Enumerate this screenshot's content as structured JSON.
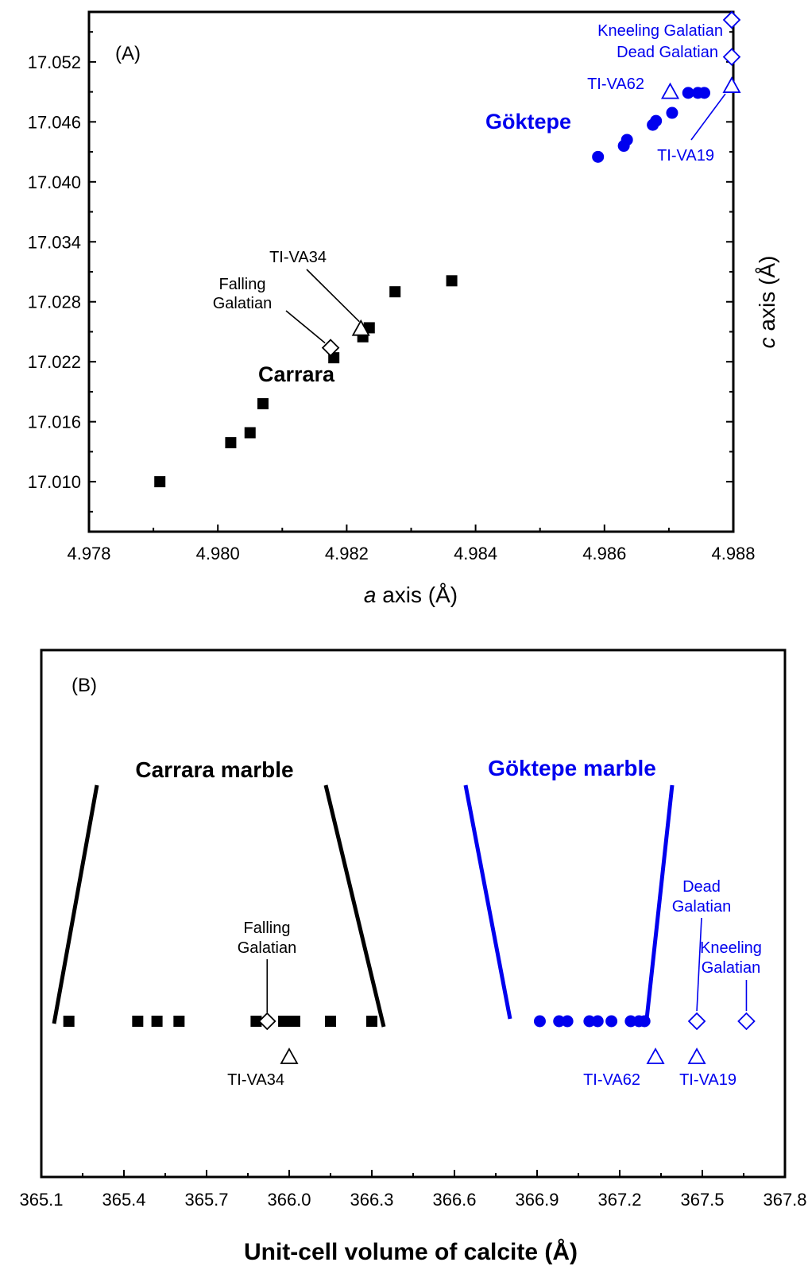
{
  "colors": {
    "carrara": "#000000",
    "goktepe": "#0000ee"
  },
  "chart_data": [
    {
      "type": "scatter",
      "panel_label": "(A)",
      "xlabel_italic": "a",
      "xlabel_rest": " axis (Å)",
      "ylabel_italic": "c",
      "ylabel_rest": " axis (Å)",
      "xlim": [
        4.978,
        4.988
      ],
      "ylim": [
        17.005,
        17.057
      ],
      "x_ticks": [
        4.978,
        4.98,
        4.982,
        4.984,
        4.986,
        4.988
      ],
      "x_tick_labels": [
        "4.978",
        "4.980",
        "4.982",
        "4.984",
        "4.986",
        "4.988"
      ],
      "y_ticks": [
        17.01,
        17.016,
        17.022,
        17.028,
        17.034,
        17.04,
        17.046,
        17.052
      ],
      "y_tick_labels": [
        "17.010",
        "17.016",
        "17.022",
        "17.028",
        "17.034",
        "17.040",
        "17.046",
        "17.052"
      ],
      "y_axis_side": "right",
      "series": [
        {
          "name": "Carrara",
          "marker": "square",
          "color": "#000000",
          "points": [
            [
              4.9791,
              17.01
            ],
            [
              4.9802,
              17.0139
            ],
            [
              4.9805,
              17.0149
            ],
            [
              4.9807,
              17.0178
            ],
            [
              4.9818,
              17.0224
            ],
            [
              4.98225,
              17.0245
            ],
            [
              4.98235,
              17.0254
            ],
            [
              4.98275,
              17.029
            ],
            [
              4.98363,
              17.0301
            ]
          ]
        },
        {
          "name": "Göktepe",
          "marker": "circle",
          "color": "#0000ee",
          "points": [
            [
              4.9859,
              17.0425
            ],
            [
              4.9863,
              17.0436
            ],
            [
              4.98635,
              17.0442
            ],
            [
              4.98675,
              17.0457
            ],
            [
              4.9868,
              17.0461
            ],
            [
              4.98705,
              17.0469
            ],
            [
              4.9873,
              17.0489
            ],
            [
              4.98745,
              17.0489
            ],
            [
              4.98755,
              17.0489
            ]
          ]
        }
      ],
      "samples": [
        {
          "label": "Falling Galatian",
          "marker": "diamond",
          "color": "#000000",
          "x": 4.98175,
          "y": 17.0234
        },
        {
          "label": "TI-VA34",
          "marker": "triangle",
          "color": "#000000",
          "x": 4.98222,
          "y": 17.0253
        },
        {
          "label": "TI-VA62",
          "marker": "triangle",
          "color": "#0000ee",
          "x": 4.98702,
          "y": 17.049
        },
        {
          "label": "TI-VA19",
          "marker": "triangle",
          "color": "#0000ee",
          "x": 4.988,
          "y": 17.0496
        },
        {
          "label": "Dead Galatian",
          "marker": "diamond",
          "color": "#0000ee",
          "x": 4.988,
          "y": 17.0525
        },
        {
          "label": "Kneeling Galatian",
          "marker": "diamond",
          "color": "#0000ee",
          "x": 4.988,
          "y": 17.0562
        }
      ],
      "group_labels": [
        {
          "text": "Carrara",
          "color": "#000000"
        },
        {
          "text": "Göktepe",
          "color": "#0000ee"
        }
      ],
      "sample_label_lines": {
        "falling": [
          "Falling",
          "Galatian"
        ],
        "tiva34": "TI-VA34",
        "tiva62": "TI-VA62",
        "tiva19": "TI-VA19",
        "dead": "Dead Galatian",
        "kneeling": "Kneeling Galatian"
      }
    },
    {
      "type": "scatter",
      "panel_label": "(B)",
      "xlabel": "Unit-cell volume of calcite (Å)",
      "xlim": [
        365.1,
        367.8
      ],
      "x_ticks": [
        365.1,
        365.4,
        365.7,
        366.0,
        366.3,
        366.6,
        366.9,
        367.2,
        367.5,
        367.8
      ],
      "x_tick_labels": [
        "365.1",
        "365.4",
        "365.7",
        "366.0",
        "366.3",
        "366.6",
        "366.9",
        "367.2",
        "367.5",
        "367.8"
      ],
      "series": [
        {
          "name": "Carrara marble",
          "marker": "square",
          "color": "#000000",
          "x": [
            365.2,
            365.45,
            365.52,
            365.6,
            365.88,
            365.98,
            366.02,
            366.15,
            366.3
          ]
        },
        {
          "name": "Göktepe marble",
          "marker": "circle",
          "color": "#0000ee",
          "x": [
            366.91,
            366.98,
            367.01,
            367.09,
            367.12,
            367.17,
            367.24,
            367.27,
            367.29
          ]
        }
      ],
      "samples": [
        {
          "label": "Falling Galatian",
          "marker": "diamond",
          "color": "#000000",
          "x": 365.92,
          "row": "main"
        },
        {
          "label": "TI-VA34",
          "marker": "triangle",
          "color": "#000000",
          "x": 366.0,
          "row": "below"
        },
        {
          "label": "TI-VA62",
          "marker": "triangle",
          "color": "#0000ee",
          "x": 367.33,
          "row": "below"
        },
        {
          "label": "TI-VA19",
          "marker": "triangle",
          "color": "#0000ee",
          "x": 367.48,
          "row": "below"
        },
        {
          "label": "Dead Galatian",
          "marker": "diamond",
          "color": "#0000ee",
          "x": 367.48,
          "row": "main"
        },
        {
          "label": "Kneeling Galatian",
          "marker": "diamond",
          "color": "#0000ee",
          "x": 367.66,
          "row": "main"
        }
      ],
      "group_labels": [
        {
          "text": "Carrara marble",
          "color": "#000000"
        },
        {
          "text": "Göktepe marble",
          "color": "#0000ee"
        }
      ],
      "sample_label_lines": {
        "falling": [
          "Falling",
          "Galatian"
        ],
        "tiva34": "TI-VA34",
        "tiva62": "TI-VA62",
        "tiva19": "TI-VA19",
        "dead": [
          "Dead",
          "Galatian"
        ],
        "kneeling": [
          "Kneeling",
          "Galatian"
        ]
      }
    }
  ]
}
